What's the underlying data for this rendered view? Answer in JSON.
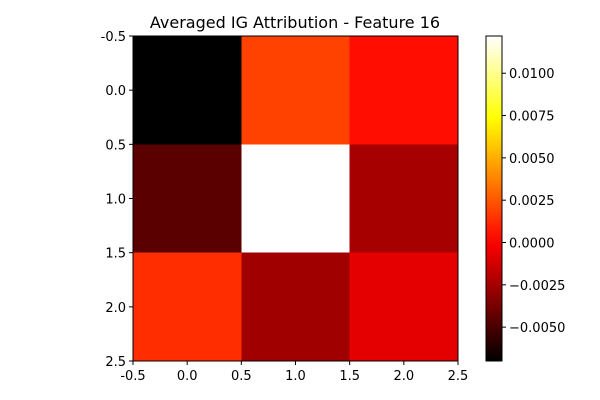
{
  "chart_data": {
    "type": "heatmap",
    "title": "Averaged IG Attribution - Feature 16",
    "xlabel": "",
    "ylabel": "",
    "colormap": "hot",
    "values": [
      [
        -0.007,
        0.0019,
        0.0004
      ],
      [
        -0.0045,
        0.0122,
        -0.0024
      ],
      [
        0.0013,
        -0.0026,
        -0.0007
      ]
    ],
    "vmin": -0.007,
    "vmax": 0.0122,
    "x_ticks": [
      "-0.5",
      "0.0",
      "0.5",
      "1.0",
      "1.5",
      "2.0",
      "2.5"
    ],
    "y_ticks": [
      "-0.5",
      "0.0",
      "0.5",
      "1.0",
      "1.5",
      "2.0",
      "2.5"
    ],
    "colorbar_ticks": [
      {
        "value": 0.01,
        "label": "0.0100"
      },
      {
        "value": 0.0075,
        "label": "0.0075"
      },
      {
        "value": 0.005,
        "label": "0.0050"
      },
      {
        "value": 0.0025,
        "label": "0.0025"
      },
      {
        "value": 0.0,
        "label": "0.0000"
      },
      {
        "value": -0.0025,
        "label": "−0.0025"
      },
      {
        "value": -0.005,
        "label": "−0.0050"
      }
    ],
    "xlim": [
      -0.5,
      2.5
    ],
    "ylim": [
      2.5,
      -0.5
    ],
    "grid": false,
    "colorbar": "right"
  }
}
